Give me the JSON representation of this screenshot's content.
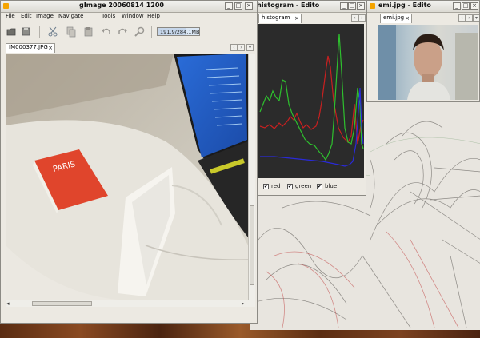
{
  "main_window": {
    "title": "gImage 20060814 1200",
    "menus": [
      "File",
      "Edit",
      "Image",
      "Navigate",
      "Tools",
      "Window",
      "Help"
    ],
    "memory": "191.9/284.1MB",
    "tab": "IM000377.JPG"
  },
  "histogram_window": {
    "title": "w histogram - Edito",
    "tab": "histogram",
    "channels": [
      "red",
      "green",
      "blue"
    ]
  },
  "emi_window": {
    "title": "emi.jpg - Edito",
    "tab": "emi.jpg"
  },
  "colors": {
    "accent": "#f5a400",
    "red": "#c82020",
    "green": "#2ec02e",
    "blue": "#2a2ad8",
    "histogram_bg": "#2b2b2b"
  },
  "icons": [
    "open-icon",
    "save-icon",
    "cut-icon",
    "copy-icon",
    "paste-icon",
    "undo-icon",
    "redo-icon",
    "search-icon",
    "close-icon",
    "minimize-icon",
    "maximize-icon",
    "window-menu-icon"
  ]
}
